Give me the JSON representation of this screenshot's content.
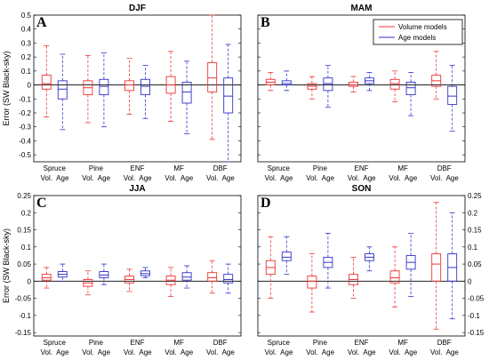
{
  "figure": {
    "ylabel": "Error (SW Black-sky)",
    "legend": {
      "position": "top-right of panel B",
      "entries": [
        {
          "label": "Volume models",
          "color": "#ee3333"
        },
        {
          "label": "Age models",
          "color": "#3333cc"
        }
      ]
    },
    "colors": {
      "volume": "#ee3333",
      "age": "#3333cc",
      "zero_line": "#000000",
      "axes": "#000000"
    }
  },
  "chart_data": [
    {
      "type": "boxplot",
      "panel": "A",
      "title": "DJF",
      "categories": [
        "Spruce",
        "Pine",
        "ENF",
        "MF",
        "DBF"
      ],
      "sublabels": [
        "Vol.",
        "Age"
      ],
      "ylim": [
        -0.55,
        0.5
      ],
      "yticks": [
        -0.5,
        -0.4,
        -0.3,
        -0.2,
        -0.1,
        0,
        0.1,
        0.2,
        0.3,
        0.4,
        0.5
      ],
      "ytick_labels": [
        "-0.5",
        "-0.4",
        "-0.3",
        "-0.2",
        "-0.1",
        "0",
        "0.1",
        "0.2",
        "0.3",
        "0.4",
        "0.5"
      ],
      "yaxis_side": "left",
      "show_ylabel": true,
      "series": [
        {
          "name": "Volume models",
          "boxes": [
            {
              "min": -0.23,
              "q1": -0.03,
              "median": 0.01,
              "q3": 0.07,
              "max": 0.28
            },
            {
              "min": -0.27,
              "q1": -0.07,
              "median": -0.02,
              "q3": 0.03,
              "max": 0.21
            },
            {
              "min": -0.21,
              "q1": -0.04,
              "median": 0.0,
              "q3": 0.03,
              "max": 0.19
            },
            {
              "min": -0.26,
              "q1": -0.06,
              "median": 0.0,
              "q3": 0.06,
              "max": 0.24
            },
            {
              "min": -0.39,
              "q1": -0.05,
              "median": 0.05,
              "q3": 0.16,
              "max": 0.5
            }
          ]
        },
        {
          "name": "Age models",
          "boxes": [
            {
              "min": -0.32,
              "q1": -0.1,
              "median": -0.03,
              "q3": 0.03,
              "max": 0.22
            },
            {
              "min": -0.3,
              "q1": -0.07,
              "median": -0.01,
              "q3": 0.04,
              "max": 0.23
            },
            {
              "min": -0.24,
              "q1": -0.07,
              "median": -0.01,
              "q3": 0.04,
              "max": 0.14
            },
            {
              "min": -0.35,
              "q1": -0.13,
              "median": -0.05,
              "q3": 0.02,
              "max": 0.17
            },
            {
              "min": -0.55,
              "q1": -0.2,
              "median": -0.08,
              "q3": 0.05,
              "max": 0.29
            }
          ]
        }
      ]
    },
    {
      "type": "boxplot",
      "panel": "B",
      "title": "MAM",
      "categories": [
        "Spruce",
        "Pine",
        "ENF",
        "MF",
        "DBF"
      ],
      "sublabels": [
        "Vol.",
        "Age"
      ],
      "ylim": [
        -0.55,
        0.5
      ],
      "yticks": [
        -0.5,
        -0.4,
        -0.3,
        -0.2,
        -0.1,
        0,
        0.1,
        0.2,
        0.3,
        0.4,
        0.5
      ],
      "ytick_labels": [
        "",
        "",
        "",
        "",
        "",
        "",
        "",
        "",
        "",
        "",
        ""
      ],
      "yaxis_side": "none",
      "show_ylabel": false,
      "series": [
        {
          "name": "Volume models",
          "boxes": [
            {
              "min": -0.04,
              "q1": 0.0,
              "median": 0.02,
              "q3": 0.04,
              "max": 0.09
            },
            {
              "min": -0.1,
              "q1": -0.03,
              "median": -0.01,
              "q3": 0.01,
              "max": 0.06
            },
            {
              "min": -0.05,
              "q1": -0.01,
              "median": 0.0,
              "q3": 0.02,
              "max": 0.06
            },
            {
              "min": -0.12,
              "q1": -0.03,
              "median": 0.01,
              "q3": 0.04,
              "max": 0.1
            },
            {
              "min": -0.1,
              "q1": -0.01,
              "median": 0.03,
              "q3": 0.07,
              "max": 0.24
            }
          ]
        },
        {
          "name": "Age models",
          "boxes": [
            {
              "min": -0.04,
              "q1": 0.0,
              "median": 0.01,
              "q3": 0.03,
              "max": 0.1
            },
            {
              "min": -0.16,
              "q1": -0.04,
              "median": 0.01,
              "q3": 0.05,
              "max": 0.14
            },
            {
              "min": -0.04,
              "q1": 0.01,
              "median": 0.03,
              "q3": 0.05,
              "max": 0.09
            },
            {
              "min": -0.22,
              "q1": -0.07,
              "median": -0.02,
              "q3": 0.02,
              "max": 0.09
            },
            {
              "min": -0.33,
              "q1": -0.14,
              "median": -0.08,
              "q3": -0.01,
              "max": 0.14
            }
          ]
        }
      ]
    },
    {
      "type": "boxplot",
      "panel": "C",
      "title": "JJA",
      "categories": [
        "Spruce",
        "Pine",
        "ENF",
        "MF",
        "DBF"
      ],
      "sublabels": [
        "Vol.",
        "Age"
      ],
      "ylim": [
        -0.16,
        0.25
      ],
      "yticks": [
        -0.15,
        -0.1,
        -0.05,
        0,
        0.05,
        0.1,
        0.15,
        0.2,
        0.25
      ],
      "ytick_labels": [
        "-0.15",
        "-0.1",
        "-0.05",
        "0",
        "0.05",
        "0.1",
        "0.15",
        "0.2",
        "0.25"
      ],
      "yaxis_side": "left",
      "show_ylabel": true,
      "series": [
        {
          "name": "Volume models",
          "boxes": [
            {
              "min": -0.02,
              "q1": 0.003,
              "median": 0.01,
              "q3": 0.02,
              "max": 0.04
            },
            {
              "min": -0.04,
              "q1": -0.015,
              "median": -0.005,
              "q3": 0.005,
              "max": 0.03
            },
            {
              "min": -0.03,
              "q1": -0.005,
              "median": 0.005,
              "q3": 0.015,
              "max": 0.035
            },
            {
              "min": -0.045,
              "q1": -0.01,
              "median": 0.003,
              "q3": 0.015,
              "max": 0.04
            },
            {
              "min": -0.035,
              "q1": 0.0,
              "median": 0.01,
              "q3": 0.025,
              "max": 0.06
            }
          ]
        },
        {
          "name": "Age models",
          "boxes": [
            {
              "min": 0.0,
              "q1": 0.012,
              "median": 0.02,
              "q3": 0.028,
              "max": 0.05
            },
            {
              "min": -0.01,
              "q1": 0.01,
              "median": 0.018,
              "q3": 0.028,
              "max": 0.05
            },
            {
              "min": 0.01,
              "q1": 0.016,
              "median": 0.022,
              "q3": 0.03,
              "max": 0.04
            },
            {
              "min": -0.02,
              "q1": 0.003,
              "median": 0.012,
              "q3": 0.025,
              "max": 0.045
            },
            {
              "min": -0.035,
              "q1": -0.005,
              "median": 0.005,
              "q3": 0.02,
              "max": 0.05
            }
          ]
        }
      ]
    },
    {
      "type": "boxplot",
      "panel": "D",
      "title": "SON",
      "categories": [
        "Spruce",
        "Pine",
        "ENF",
        "MF",
        "DBF"
      ],
      "sublabels": [
        "Vol.",
        "Age"
      ],
      "ylim": [
        -0.16,
        0.25
      ],
      "yticks": [
        -0.15,
        -0.1,
        -0.05,
        0,
        0.05,
        0.1,
        0.15,
        0.2,
        0.25
      ],
      "ytick_labels": [
        "-0.15",
        "-0.1",
        "-0.05",
        "0",
        "0.05",
        "0.1",
        "0.15",
        "0.2",
        "0.25"
      ],
      "yaxis_side": "right",
      "show_ylabel": false,
      "series": [
        {
          "name": "Volume models",
          "boxes": [
            {
              "min": -0.05,
              "q1": 0.02,
              "median": 0.04,
              "q3": 0.06,
              "max": 0.13
            },
            {
              "min": -0.09,
              "q1": -0.02,
              "median": 0.0,
              "q3": 0.015,
              "max": 0.08
            },
            {
              "min": -0.05,
              "q1": -0.01,
              "median": 0.005,
              "q3": 0.02,
              "max": 0.07
            },
            {
              "min": -0.075,
              "q1": -0.005,
              "median": 0.01,
              "q3": 0.03,
              "max": 0.1
            },
            {
              "min": -0.14,
              "q1": 0.0,
              "median": 0.05,
              "q3": 0.08,
              "max": 0.23
            }
          ]
        },
        {
          "name": "Age models",
          "boxes": [
            {
              "min": 0.02,
              "q1": 0.06,
              "median": 0.07,
              "q3": 0.085,
              "max": 0.13
            },
            {
              "min": -0.02,
              "q1": 0.04,
              "median": 0.055,
              "q3": 0.07,
              "max": 0.14
            },
            {
              "min": 0.03,
              "q1": 0.06,
              "median": 0.07,
              "q3": 0.08,
              "max": 0.1
            },
            {
              "min": -0.045,
              "q1": 0.035,
              "median": 0.055,
              "q3": 0.075,
              "max": 0.14
            },
            {
              "min": -0.11,
              "q1": 0.0,
              "median": 0.04,
              "q3": 0.08,
              "max": 0.2
            }
          ]
        }
      ]
    }
  ]
}
